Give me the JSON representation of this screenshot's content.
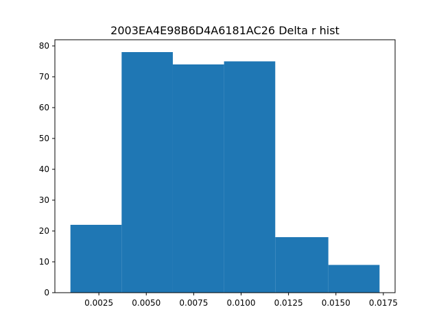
{
  "chart_data": {
    "type": "bar",
    "title": "2003EA4E98B6D4A6181AC26 Delta r hist",
    "xlabel": "",
    "ylabel": "",
    "bin_edges": [
      0.001,
      0.0037,
      0.0064,
      0.0091,
      0.0118,
      0.0146,
      0.0173
    ],
    "values": [
      22,
      78,
      74,
      75,
      18,
      9
    ],
    "xlim": [
      0.00018,
      0.01812
    ],
    "ylim": [
      0,
      82
    ],
    "x_ticks": [
      0.0025,
      0.005,
      0.0075,
      0.01,
      0.0125,
      0.015,
      0.0175
    ],
    "x_tick_labels": [
      "0.0025",
      "0.0050",
      "0.0075",
      "0.0100",
      "0.0125",
      "0.0150",
      "0.0175"
    ],
    "y_ticks": [
      0,
      10,
      20,
      30,
      40,
      50,
      60,
      70,
      80
    ],
    "y_tick_labels": [
      "0",
      "10",
      "20",
      "30",
      "40",
      "50",
      "60",
      "70",
      "80"
    ],
    "bar_color": "#1f77b4",
    "grid": false,
    "legend": "none"
  }
}
